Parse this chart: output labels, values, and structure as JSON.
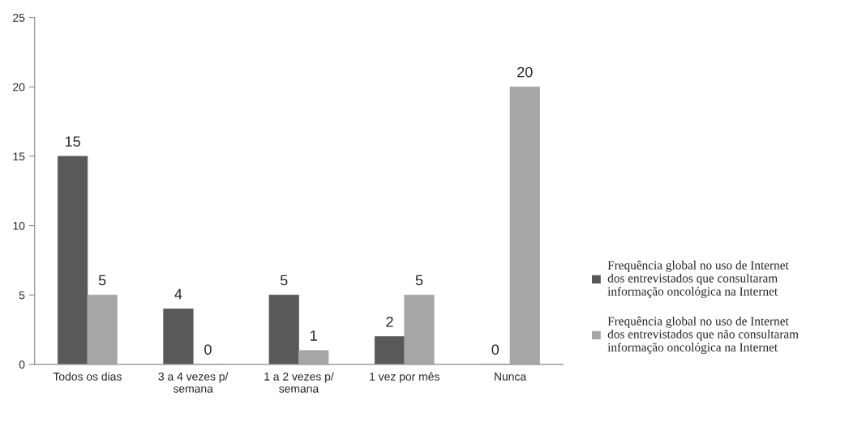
{
  "chart_data": {
    "type": "bar",
    "categories": [
      "Todos os dias",
      "3 a 4 vezes p/\nsemana",
      "1 a 2 vezes p/\nsemana",
      "1 vez por mês",
      "Nunca"
    ],
    "series": [
      {
        "name": "Frequência global no uso de Internet\ndos entrevistados que consultaram\ninformação oncológica na Internet",
        "color": "#595959",
        "values": [
          15,
          4,
          5,
          2,
          0
        ]
      },
      {
        "name": "Frequência global no uso de Internet\ndos entrevistados que não consultaram\ninformação oncológica na Internet",
        "color": "#a6a6a6",
        "values": [
          5,
          0,
          1,
          5,
          20
        ]
      }
    ],
    "ylim": [
      0,
      25
    ],
    "yticks": [
      0,
      5,
      10,
      15,
      20,
      25
    ],
    "grid": false,
    "legend": "right",
    "data_labels": true
  }
}
